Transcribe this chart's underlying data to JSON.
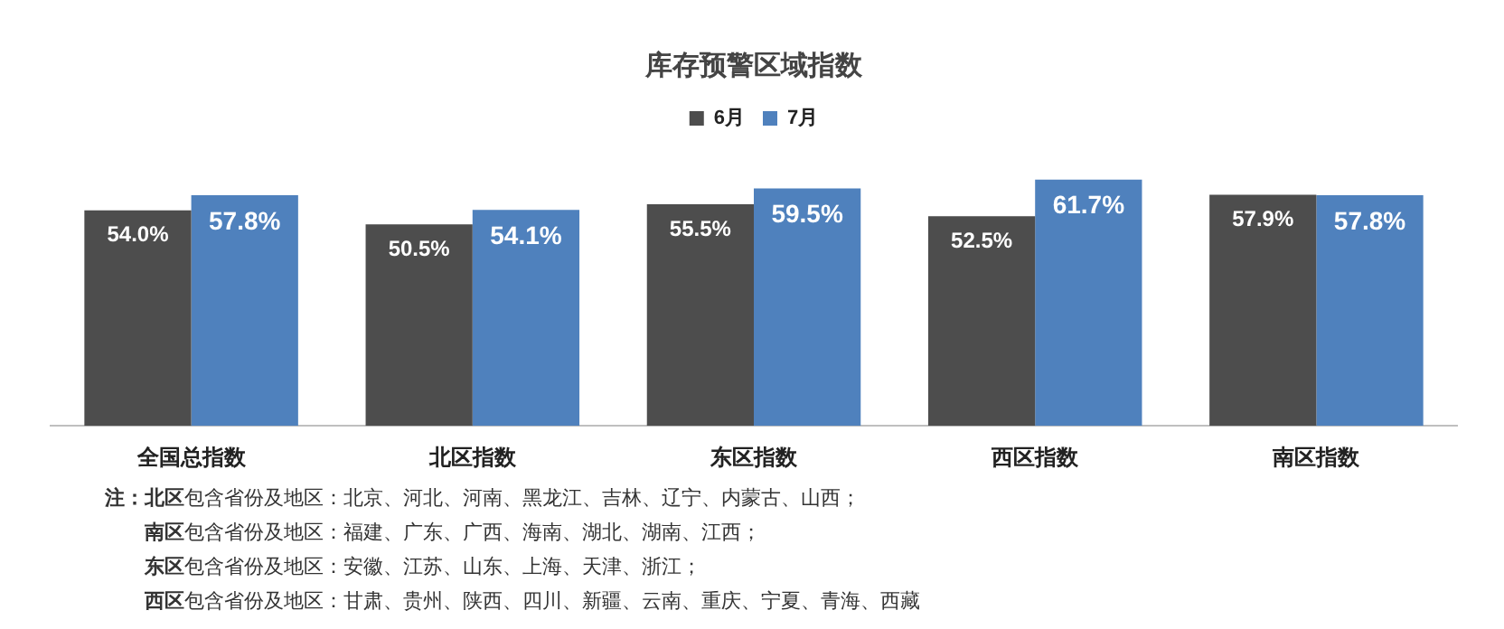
{
  "chart_data": {
    "type": "bar",
    "title": "库存预警区域指数",
    "categories": [
      "全国总指数",
      "北区指数",
      "东区指数",
      "西区指数",
      "南区指数"
    ],
    "series": [
      {
        "name": "6月",
        "color": "#4d4d4d",
        "values": [
          54.0,
          50.5,
          55.5,
          52.5,
          57.9
        ],
        "value_labels": [
          "54.0%",
          "50.5%",
          "55.5%",
          "52.5%",
          "57.9%"
        ]
      },
      {
        "name": "7月",
        "color": "#4f81bd",
        "values": [
          57.8,
          54.1,
          59.5,
          61.7,
          57.8
        ],
        "value_labels": [
          "57.8%",
          "54.1%",
          "59.5%",
          "61.7%",
          "57.8%"
        ]
      }
    ],
    "tick_labels": "x",
    "legend": "top",
    "grid": false,
    "annotations": [
      "注：",
      "北区包含省份及地区：北京、河北、河南、黑龙江、吉林、辽宁、内蒙古、山西；",
      "南区包含省份及地区：福建、广东、广西、海南、湖北、湖南、江西；",
      "东区包含省份及地区：安徽、江苏、山东、上海、天津、浙江；",
      "西区包含省份及地区：甘肃、贵州、陕西、四川、新疆、云南、重庆、宁夏、青海、西藏"
    ]
  }
}
